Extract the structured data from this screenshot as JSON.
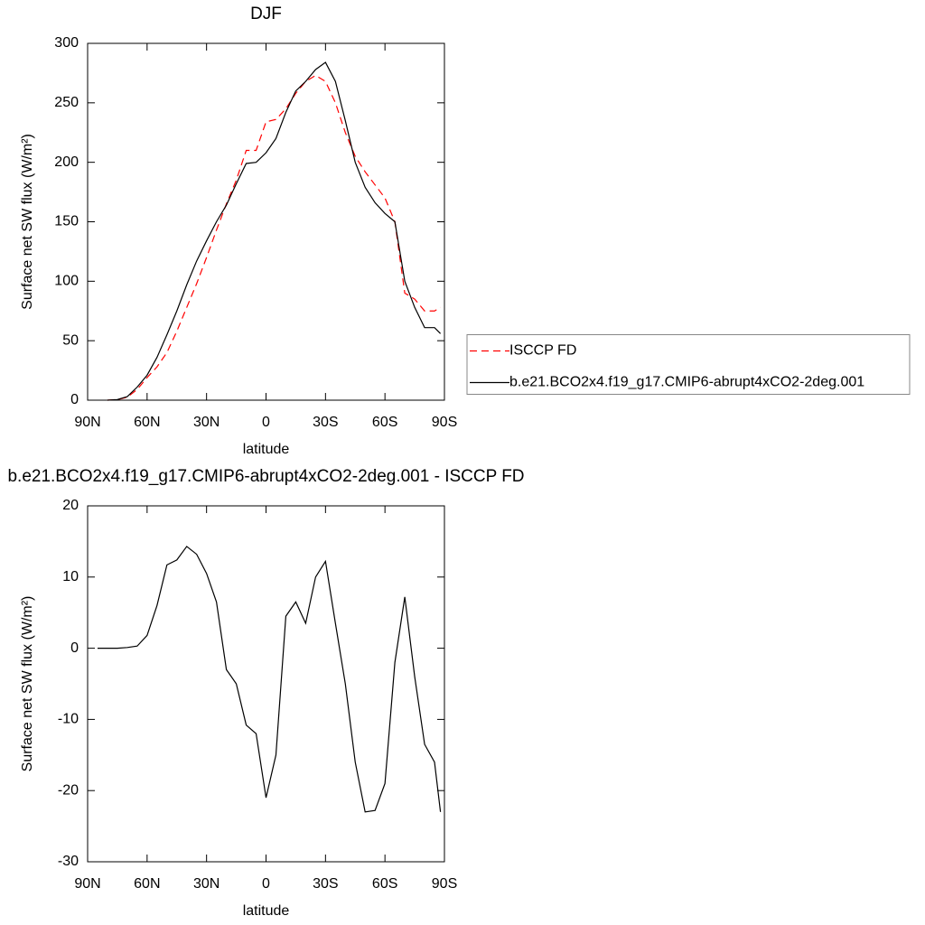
{
  "chart_data": [
    {
      "type": "line",
      "title": "DJF",
      "xlabel": "latitude",
      "ylabel": "Surface net SW flux (W/m²)",
      "x": [
        80,
        75,
        70,
        65,
        60,
        55,
        50,
        45,
        40,
        35,
        30,
        25,
        20,
        15,
        10,
        5,
        0,
        -5,
        -10,
        -15,
        -20,
        -25,
        -30,
        -35,
        -40,
        -45,
        -50,
        -55,
        -60,
        -65,
        -70,
        -75,
        -80,
        -85,
        -88
      ],
      "series": [
        {
          "name": "ISCCP FD",
          "color": "#ff0000",
          "line_style": "dashed",
          "values": [
            0,
            0.5,
            2.5,
            9,
            19,
            28,
            40,
            58,
            78,
            98,
            120,
            143,
            165,
            185,
            210,
            210,
            234,
            236,
            245,
            258,
            268,
            273,
            268,
            250,
            225,
            205,
            192,
            181,
            170,
            150,
            90,
            85,
            75,
            75,
            78
          ]
        },
        {
          "name": "b.e21.BCO2x4.f19_g17.CMIP6-abrupt4xCO2-2deg.001",
          "color": "#000000",
          "line_style": "solid",
          "values": [
            0,
            0.5,
            3,
            11,
            21,
            36,
            55,
            75,
            97,
            117,
            134,
            150,
            164,
            182,
            199,
            200,
            208,
            220,
            242,
            260,
            268,
            278,
            284,
            268,
            235,
            200,
            179,
            166,
            157,
            150,
            100,
            78,
            61,
            61,
            56
          ]
        }
      ],
      "xlim": [
        90,
        -90
      ],
      "xticks": [
        {
          "value": 90,
          "label": "90N"
        },
        {
          "value": 60,
          "label": "60N"
        },
        {
          "value": 30,
          "label": "30N"
        },
        0,
        {
          "value": -30,
          "label": "30S"
        },
        {
          "value": -60,
          "label": "60S"
        },
        {
          "value": -90,
          "label": "90S"
        }
      ],
      "ylim": [
        0,
        300
      ],
      "yticks": [
        0,
        50,
        100,
        150,
        200,
        250,
        300
      ],
      "legend_position": "right"
    },
    {
      "type": "line",
      "title": "b.e21.BCO2x4.f19_g17.CMIP6-abrupt4xCO2-2deg.001 - ISCCP FD",
      "xlabel": "latitude",
      "ylabel": "Surface net SW flux (W/m²)",
      "x": [
        85,
        80,
        75,
        70,
        65,
        60,
        55,
        50,
        45,
        40,
        35,
        30,
        25,
        20,
        15,
        10,
        5,
        0,
        -5,
        -10,
        -15,
        -20,
        -25,
        -30,
        -35,
        -40,
        -45,
        -50,
        -55,
        -60,
        -65,
        -70,
        -75,
        -80,
        -85,
        -88
      ],
      "series": [
        {
          "color": "#000000",
          "line_style": "solid",
          "values": [
            0,
            0,
            0,
            0.1,
            0.3,
            1.8,
            6,
            11.7,
            12.4,
            14.3,
            13.2,
            10.5,
            6.5,
            -3,
            -5,
            -10.8,
            -12,
            -21,
            -15,
            4.5,
            6.5,
            3.5,
            10,
            12.2,
            3.5,
            -5,
            -16,
            -23,
            -22.8,
            -19,
            -2,
            7.2,
            -4,
            -13.5,
            -16,
            -23
          ]
        }
      ],
      "xlim": [
        90,
        -90
      ],
      "xticks": [
        {
          "value": 90,
          "label": "90N"
        },
        {
          "value": 60,
          "label": "60N"
        },
        {
          "value": 30,
          "label": "30N"
        },
        0,
        {
          "value": -30,
          "label": "30S"
        },
        {
          "value": -60,
          "label": "60S"
        },
        {
          "value": -90,
          "label": "90S"
        }
      ],
      "ylim": [
        -30,
        20
      ],
      "yticks": [
        -30,
        -20,
        -10,
        0,
        10,
        20
      ]
    }
  ]
}
